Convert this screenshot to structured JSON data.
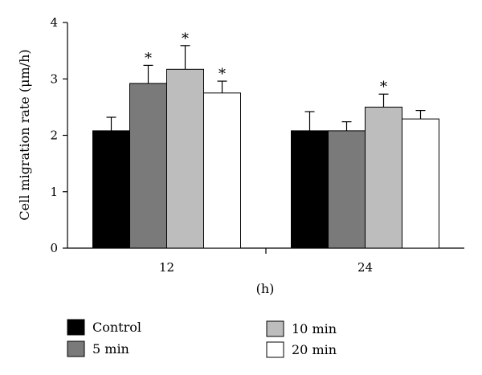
{
  "chart_data": {
    "type": "bar",
    "xlabel": "(h)",
    "ylabel": "Cell migration rate (μm/h)",
    "ylim": [
      0,
      4
    ],
    "yticks": [
      0,
      1,
      2,
      3,
      4
    ],
    "grid": false,
    "legend_position": "bottom",
    "categories": [
      "12",
      "24"
    ],
    "series": [
      {
        "name": "Control",
        "color": "#000000",
        "values": [
          2.08,
          2.08
        ],
        "errors": [
          0.24,
          0.34
        ],
        "significant": [
          false,
          false
        ]
      },
      {
        "name": "5 min",
        "color": "#7a7a7a",
        "values": [
          2.92,
          2.08
        ],
        "errors": [
          0.32,
          0.16
        ],
        "significant": [
          true,
          false
        ]
      },
      {
        "name": "10 min",
        "color": "#bdbdbd",
        "values": [
          3.17,
          2.5
        ],
        "errors": [
          0.42,
          0.23
        ],
        "significant": [
          true,
          true
        ]
      },
      {
        "name": "20 min",
        "color": "#ffffff",
        "values": [
          2.75,
          2.29
        ],
        "errors": [
          0.21,
          0.15
        ],
        "significant": [
          true,
          false
        ]
      }
    ],
    "significance_marker": "*"
  }
}
